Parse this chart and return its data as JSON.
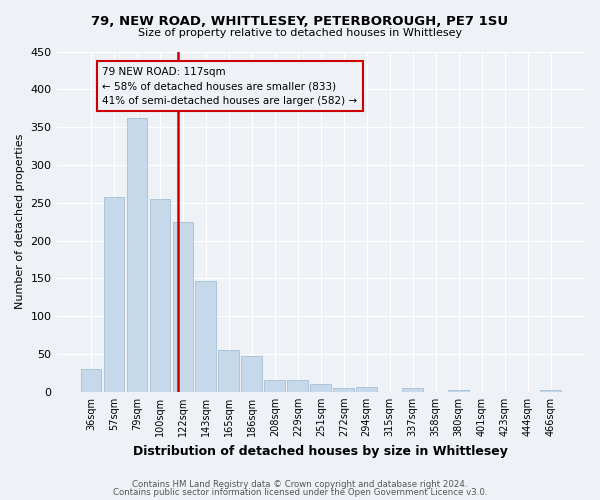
{
  "title": "79, NEW ROAD, WHITTLESEY, PETERBOROUGH, PE7 1SU",
  "subtitle": "Size of property relative to detached houses in Whittlesey",
  "xlabel": "Distribution of detached houses by size in Whittlesey",
  "ylabel": "Number of detached properties",
  "footer1": "Contains HM Land Registry data © Crown copyright and database right 2024.",
  "footer2": "Contains public sector information licensed under the Open Government Licence v3.0.",
  "bar_labels": [
    "36sqm",
    "57sqm",
    "79sqm",
    "100sqm",
    "122sqm",
    "143sqm",
    "165sqm",
    "186sqm",
    "208sqm",
    "229sqm",
    "251sqm",
    "272sqm",
    "294sqm",
    "315sqm",
    "337sqm",
    "358sqm",
    "380sqm",
    "401sqm",
    "423sqm",
    "444sqm",
    "466sqm"
  ],
  "bar_values": [
    30,
    258,
    362,
    255,
    225,
    147,
    55,
    48,
    15,
    15,
    10,
    5,
    7,
    0,
    5,
    0,
    3,
    0,
    0,
    0,
    3
  ],
  "bar_color": "#c6d9ea",
  "bar_edge_color": "#9ab8d0",
  "property_label": "79 NEW ROAD: 117sqm",
  "annotation_line1": "← 58% of detached houses are smaller (833)",
  "annotation_line2": "41% of semi-detached houses are larger (582) →",
  "vline_color": "#cc0000",
  "annotation_box_edge_color": "#cc0000",
  "background_color": "#eef2f7",
  "grid_color": "#ffffff",
  "ylim": [
    0,
    450
  ],
  "yticks": [
    0,
    50,
    100,
    150,
    200,
    250,
    300,
    350,
    400,
    450
  ]
}
